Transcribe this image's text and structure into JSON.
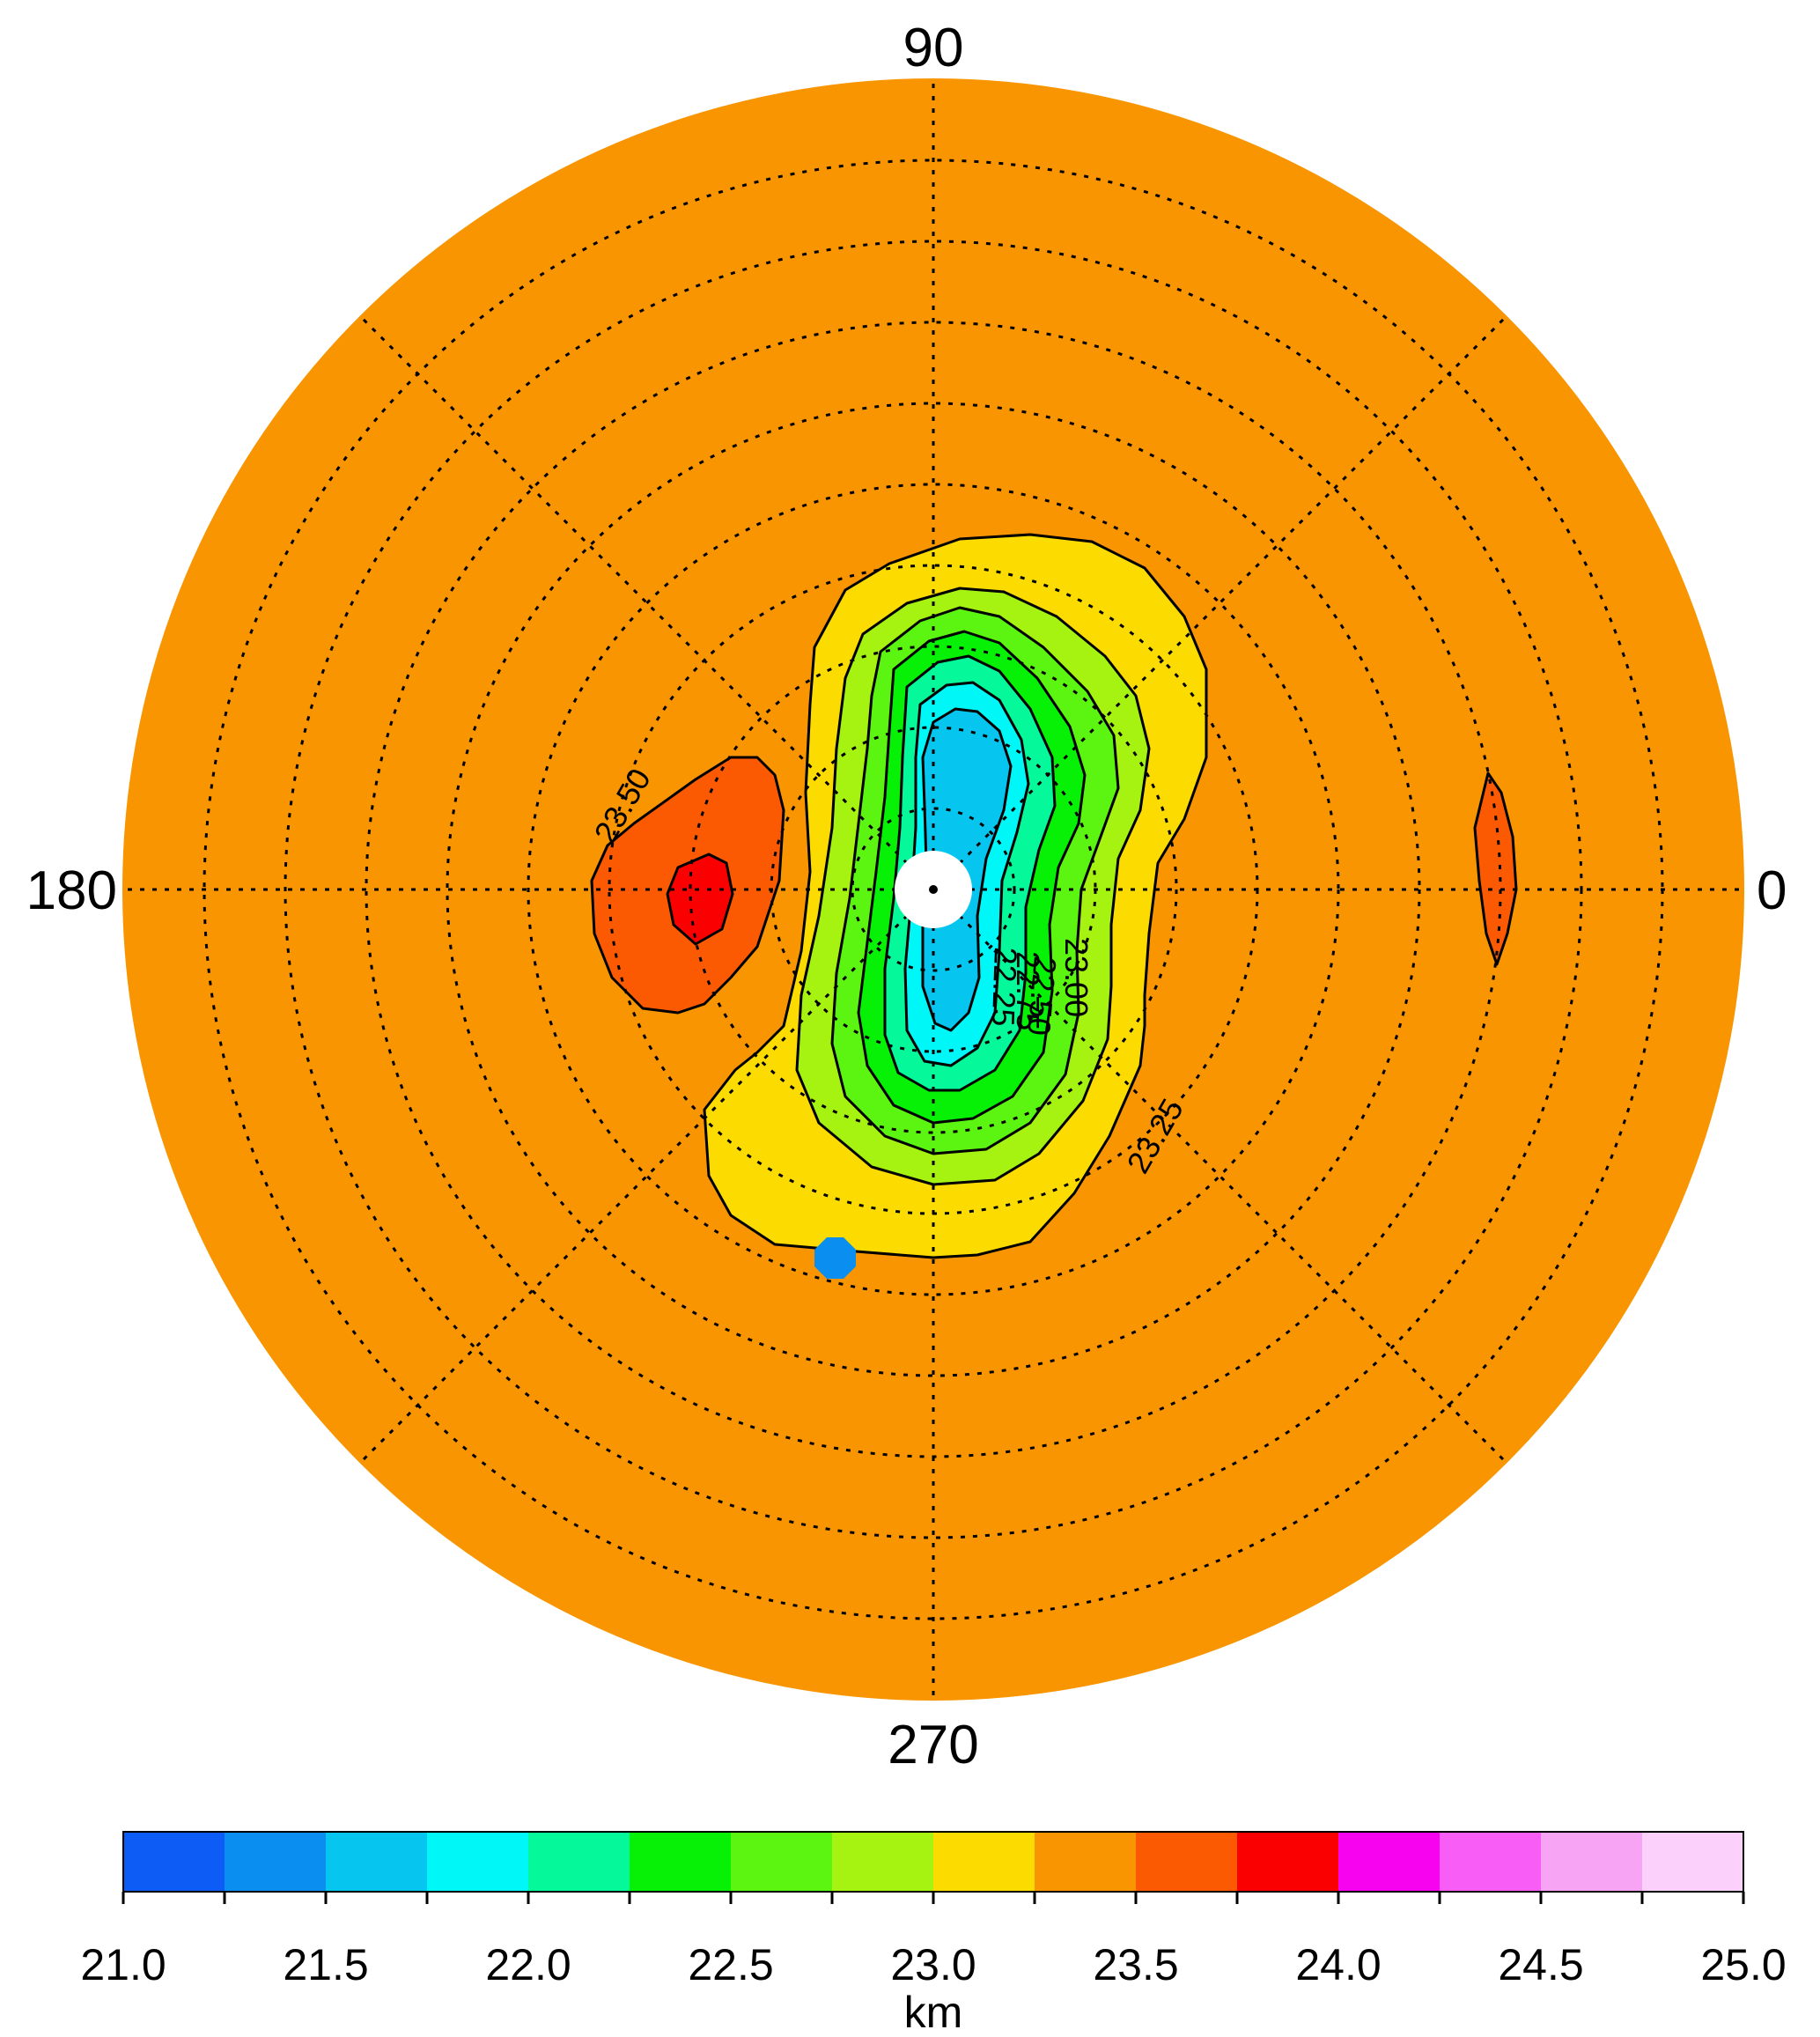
{
  "chart_data": {
    "type": "heatmap",
    "projection": "polar",
    "angle_labels": [
      {
        "text": "90",
        "angle": 90
      },
      {
        "text": "180",
        "angle": 180
      },
      {
        "text": "0",
        "angle": 0
      },
      {
        "text": "270",
        "angle": 270
      }
    ],
    "ring_count": 10,
    "spoke_angles": [
      0,
      45,
      90,
      135,
      180,
      225,
      270,
      315
    ],
    "grid": true,
    "fill_color": "#f89500",
    "contour_labels": [
      "23.50",
      "23.25",
      "23.00",
      "22.75",
      "22.50",
      "22.25"
    ],
    "colorbar": {
      "min": 21.0,
      "max": 25.0,
      "step": 0.25,
      "tick_labels": [
        "21.0",
        "21.5",
        "22.0",
        "22.5",
        "23.0",
        "23.5",
        "24.0",
        "24.5",
        "25.0"
      ],
      "unit": "km",
      "colors": [
        "#0d5cf5",
        "#0a8ff0",
        "#06c6f0",
        "#00f7f7",
        "#05f99a",
        "#07f107",
        "#5cf511",
        "#a6f211",
        "#fcdc00",
        "#f89500",
        "#fc5a02",
        "#fb0000",
        "#f703f0",
        "#f85ef5",
        "#f8a4f5",
        "#fbd0fb"
      ]
    },
    "marker_color": "#0a8ff0"
  }
}
